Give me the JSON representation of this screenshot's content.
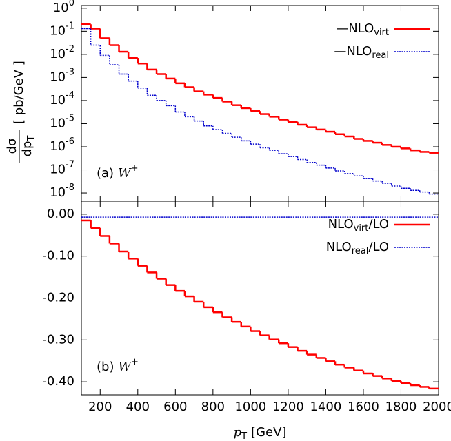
{
  "chart_data": [
    {
      "type": "histogram",
      "log_y": true,
      "ylabel_num": "dσ",
      "ylabel_den": "dp",
      "ylabel_den_sub": "T",
      "ylabel_unit": "[ pb/GeV ]",
      "annotation": {
        "text": "(a)",
        "var": "W",
        "sup": "+"
      },
      "ylim": [
        4.4e-09,
        1.3
      ],
      "yticks": [
        {
          "value": 1,
          "label": "10",
          "exp": "0"
        },
        {
          "value": 0.1,
          "label": "10",
          "exp": "-1"
        },
        {
          "value": 0.01,
          "label": "10",
          "exp": "-2"
        },
        {
          "value": 0.001,
          "label": "10",
          "exp": "-3"
        },
        {
          "value": 0.0001,
          "label": "10",
          "exp": "-4"
        },
        {
          "value": 1e-05,
          "label": "10",
          "exp": "-5"
        },
        {
          "value": 1e-06,
          "label": "10",
          "exp": "-6"
        },
        {
          "value": 1e-07,
          "label": "10",
          "exp": "-7"
        },
        {
          "value": 1e-08,
          "label": "10",
          "exp": "-8"
        }
      ],
      "legend": "upper right",
      "bins": [
        100,
        150,
        200,
        250,
        300,
        350,
        400,
        450,
        500,
        550,
        600,
        650,
        700,
        750,
        800,
        850,
        900,
        950,
        1000,
        1050,
        1100,
        1150,
        1200,
        1250,
        1300,
        1350,
        1400,
        1450,
        1500,
        1550,
        1600,
        1650,
        1700,
        1750,
        1800,
        1850,
        1900,
        1950,
        2000
      ],
      "series": [
        {
          "name": "—NLO",
          "name_sub": "virt",
          "color": "#ff0000",
          "style": "solid",
          "values": [
            0.2,
            0.13,
            0.05,
            0.025,
            0.013,
            0.007,
            0.004,
            0.0022,
            0.0014,
            0.0009,
            0.00056,
            0.00038,
            0.00025,
            0.00018,
            0.00013,
            9e-05,
            6.3e-05,
            4.7e-05,
            3.5e-05,
            2.6e-05,
            2e-05,
            1.5e-05,
            1.2e-05,
            9e-06,
            7e-06,
            5.6e-06,
            4.5e-06,
            3.5e-06,
            2.8e-06,
            2.2e-06,
            1.8e-06,
            1.5e-06,
            1.2e-06,
            1e-06,
            8.5e-07,
            7e-07,
            6e-07,
            5.5e-07
          ]
        },
        {
          "name": "—NLO",
          "name_sub": "real",
          "color": "#0000cc",
          "style": "dotted",
          "values": [
            0.13,
            0.025,
            0.009,
            0.0035,
            0.0014,
            0.0007,
            0.00035,
            0.00017,
            0.0001,
            6e-05,
            3.2e-05,
            2e-05,
            1.3e-05,
            8e-06,
            5.5e-06,
            3.8e-06,
            2.6e-06,
            1.8e-06,
            1.3e-06,
            9e-07,
            7e-07,
            5e-07,
            3.8e-07,
            2.8e-07,
            2.1e-07,
            1.6e-07,
            1.2e-07,
            9e-08,
            7e-08,
            5.5e-08,
            4.2e-08,
            3.3e-08,
            2.6e-08,
            2e-08,
            1.6e-08,
            1.3e-08,
            1.1e-08,
            9e-09
          ]
        }
      ]
    },
    {
      "type": "histogram",
      "xlabel": "p",
      "xlabel_sub": "T",
      "xlabel_unit": "[GeV]",
      "annotation": {
        "text": "(b)",
        "var": "W",
        "sup": "+"
      },
      "xlim": [
        100,
        2000
      ],
      "xticks": [
        200,
        400,
        600,
        800,
        1000,
        1200,
        1400,
        1600,
        1800,
        2000
      ],
      "ylim": [
        -0.431,
        0.031
      ],
      "yticks": [
        {
          "value": 0,
          "label": "0.00"
        },
        {
          "value": -0.1,
          "label": "-0.10"
        },
        {
          "value": -0.2,
          "label": "-0.20"
        },
        {
          "value": -0.3,
          "label": "-0.30"
        },
        {
          "value": -0.4,
          "label": "-0.40"
        }
      ],
      "legend": "upper right",
      "bins": [
        100,
        150,
        200,
        250,
        300,
        350,
        400,
        450,
        500,
        550,
        600,
        650,
        700,
        750,
        800,
        850,
        900,
        950,
        1000,
        1050,
        1100,
        1150,
        1200,
        1250,
        1300,
        1350,
        1400,
        1450,
        1500,
        1550,
        1600,
        1650,
        1700,
        1750,
        1800,
        1850,
        1900,
        1950,
        2000
      ],
      "series": [
        {
          "name": "NLO",
          "name_sub": "virt",
          "name_suffix": "/LO",
          "color": "#ff0000",
          "style": "solid",
          "values": [
            -0.015,
            -0.033,
            -0.052,
            -0.07,
            -0.089,
            -0.106,
            -0.123,
            -0.139,
            -0.154,
            -0.169,
            -0.183,
            -0.196,
            -0.209,
            -0.222,
            -0.234,
            -0.246,
            -0.257,
            -0.268,
            -0.279,
            -0.289,
            -0.299,
            -0.308,
            -0.317,
            -0.326,
            -0.335,
            -0.343,
            -0.351,
            -0.359,
            -0.366,
            -0.373,
            -0.38,
            -0.386,
            -0.392,
            -0.398,
            -0.403,
            -0.408,
            -0.412,
            -0.416
          ]
        },
        {
          "name": "NLO",
          "name_sub": "real",
          "name_suffix": "/LO",
          "color": "#0000cc",
          "style": "dotted",
          "values": [
            -0.007,
            -0.007,
            -0.007,
            -0.007,
            -0.007,
            -0.007,
            -0.007,
            -0.007,
            -0.007,
            -0.007,
            -0.007,
            -0.007,
            -0.007,
            -0.007,
            -0.007,
            -0.007,
            -0.007,
            -0.007,
            -0.007,
            -0.007,
            -0.007,
            -0.007,
            -0.007,
            -0.007,
            -0.007,
            -0.007,
            -0.007,
            -0.007,
            -0.007,
            -0.007,
            -0.007,
            -0.007,
            -0.007,
            -0.007,
            -0.007,
            -0.007,
            -0.007,
            -0.007
          ]
        }
      ]
    }
  ]
}
